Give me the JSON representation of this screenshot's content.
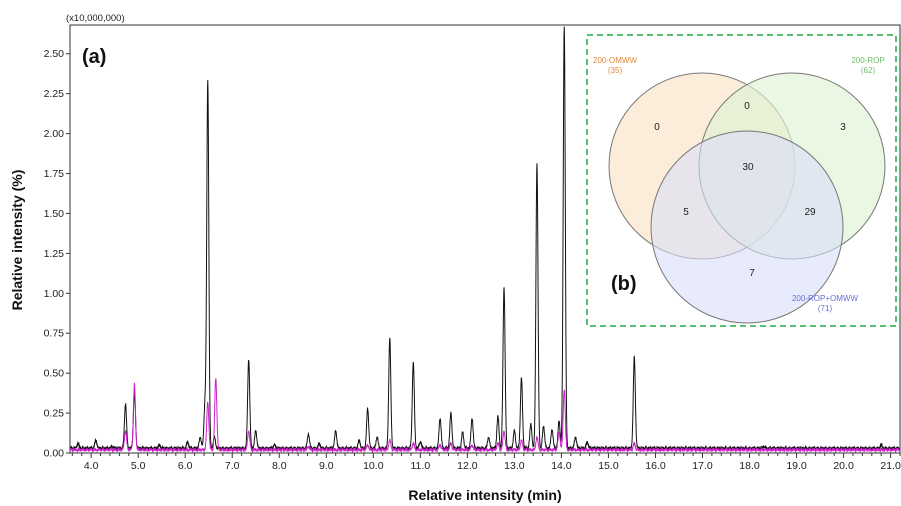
{
  "chart_data": [
    {
      "type": "line",
      "panel_label": "(a)",
      "scale_label": "(x10,000,000)",
      "xlabel": "Relative intensity (min)",
      "ylabel": "Relative intensity (%)",
      "xlim": [
        3.55,
        21.2
      ],
      "ylim": [
        0,
        2.68
      ],
      "grid": false,
      "x_ticks": [
        "4.0",
        "5.0",
        "6.0",
        "7.0",
        "8.0",
        "9.0",
        "10.0",
        "11.0",
        "12.0",
        "13.0",
        "14.0",
        "15.0",
        "16.0",
        "17.0",
        "18.0",
        "19.0",
        "20.0",
        "21.0"
      ],
      "y_ticks": [
        "0.00",
        "0.25",
        "0.50",
        "0.75",
        "1.00",
        "1.25",
        "1.50",
        "1.75",
        "2.00",
        "2.25",
        "2.50"
      ],
      "series": [
        {
          "color": "#111111",
          "baseline": 0.03,
          "peaks": [
            [
              3.72,
              0.06
            ],
            [
              4.1,
              0.08
            ],
            [
              4.45,
              0.04
            ],
            [
              4.73,
              0.31
            ],
            [
              4.92,
              0.38
            ],
            [
              5.45,
              0.05
            ],
            [
              6.05,
              0.07
            ],
            [
              6.32,
              0.1
            ],
            [
              6.42,
              0.3
            ],
            [
              6.48,
              2.33
            ],
            [
              6.62,
              0.1
            ],
            [
              7.35,
              0.59
            ],
            [
              7.5,
              0.14
            ],
            [
              7.9,
              0.05
            ],
            [
              8.62,
              0.12
            ],
            [
              8.85,
              0.06
            ],
            [
              9.2,
              0.14
            ],
            [
              9.7,
              0.08
            ],
            [
              9.88,
              0.28
            ],
            [
              10.08,
              0.1
            ],
            [
              10.35,
              0.72
            ],
            [
              10.85,
              0.57
            ],
            [
              11.0,
              0.07
            ],
            [
              11.42,
              0.22
            ],
            [
              11.65,
              0.25
            ],
            [
              11.9,
              0.13
            ],
            [
              12.1,
              0.22
            ],
            [
              12.45,
              0.1
            ],
            [
              12.65,
              0.23
            ],
            [
              12.78,
              1.04
            ],
            [
              13.0,
              0.14
            ],
            [
              13.15,
              0.47
            ],
            [
              13.35,
              0.18
            ],
            [
              13.48,
              1.81
            ],
            [
              13.62,
              0.17
            ],
            [
              13.8,
              0.15
            ],
            [
              13.95,
              0.2
            ],
            [
              14.06,
              2.68
            ],
            [
              14.3,
              0.1
            ],
            [
              14.55,
              0.07
            ],
            [
              15.55,
              0.6
            ],
            [
              18.3,
              0.04
            ],
            [
              19.8,
              0.03
            ],
            [
              20.8,
              0.05
            ]
          ]
        },
        {
          "color": "#cc22cc",
          "baseline": 0.02,
          "peaks": [
            [
              4.73,
              0.14
            ],
            [
              4.92,
              0.43
            ],
            [
              6.48,
              0.32
            ],
            [
              6.65,
              0.47
            ],
            [
              7.35,
              0.14
            ],
            [
              8.62,
              0.04
            ],
            [
              9.88,
              0.05
            ],
            [
              10.35,
              0.08
            ],
            [
              10.85,
              0.06
            ],
            [
              11.42,
              0.05
            ],
            [
              11.65,
              0.06
            ],
            [
              12.1,
              0.05
            ],
            [
              12.65,
              0.06
            ],
            [
              12.78,
              0.14
            ],
            [
              13.15,
              0.08
            ],
            [
              13.48,
              0.1
            ],
            [
              13.95,
              0.13
            ],
            [
              14.06,
              0.4
            ],
            [
              15.55,
              0.06
            ]
          ]
        }
      ]
    },
    {
      "type": "diagram",
      "panel_label": "(b)",
      "sets": [
        {
          "name": "200-OMWW",
          "count": "(35)",
          "color": "#f0a060",
          "fill": "#fbe7cd"
        },
        {
          "name": "200-ROP",
          "count": "(62)",
          "color": "#7cc87c",
          "fill": "#ddf2d4"
        },
        {
          "name": "200-ROP+OMWW",
          "count": "(71)",
          "color": "#7f8fe6",
          "fill": "#d9def8"
        }
      ],
      "regions": {
        "omww_only": "0",
        "omww_rop": "0",
        "rop_only": "3",
        "all_three": "30",
        "omww_rop_omww": "5",
        "rop_rop_omww": "29",
        "rop_omww_only": "7"
      }
    }
  ]
}
